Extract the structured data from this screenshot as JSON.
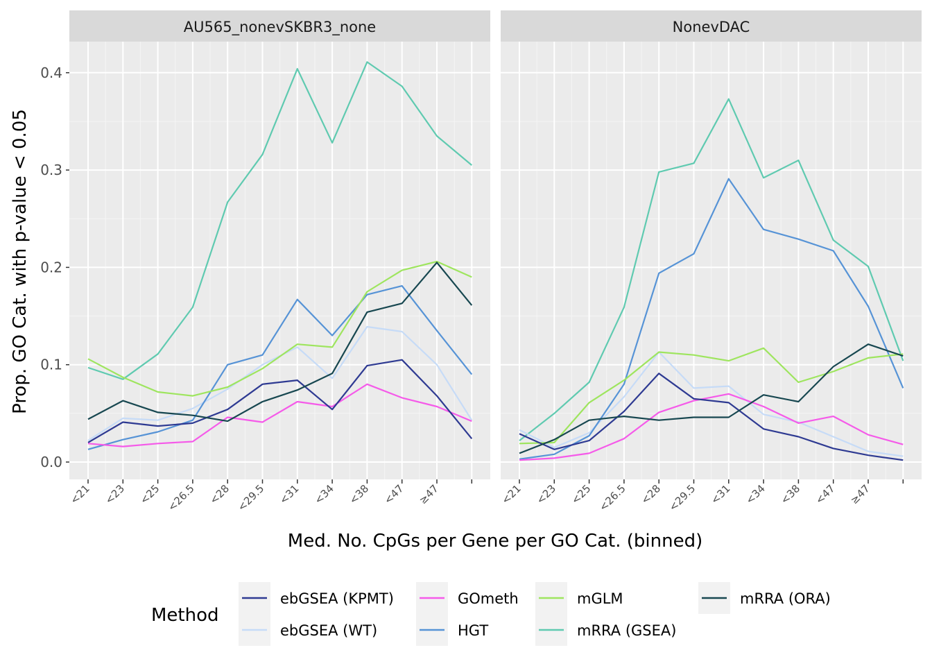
{
  "chart_data": {
    "type": "line",
    "ylabel": "Prop. GO Cat. with p-value < 0.05",
    "xlabel": "Med. No. CpGs per Gene per GO Cat. (binned)",
    "ylim": [
      -0.017,
      0.43
    ],
    "yticks": [
      0.0,
      0.1,
      0.2,
      0.3,
      0.4
    ],
    "ytick_labels": [
      "0.0",
      "0.1",
      "0.2",
      "0.3",
      "0.4"
    ],
    "categories": [
      "<21",
      "<23",
      "<25",
      "<26.5",
      "<28",
      "<29.5",
      "<31",
      "<34",
      "<38",
      "<47",
      "≥47",
      ""
    ],
    "grid": true,
    "legend": {
      "title": "Method",
      "placement": "bottom",
      "entries": [
        "ebGSEA (KPMT)",
        "ebGSEA (WT)",
        "GOmeth",
        "HGT",
        "mGLM",
        "mRRA (GSEA)",
        "mRRA (ORA)"
      ]
    },
    "colors": {
      "ebGSEA (KPMT)": "#2e3a92",
      "ebGSEA (WT)": "#c6dbf7",
      "GOmeth": "#f55ae9",
      "HGT": "#5693d6",
      "mGLM": "#9ee55e",
      "mRRA (GSEA)": "#5fcab0",
      "mRRA (ORA)": "#174750"
    },
    "panels": [
      {
        "title": "AU565_nonevSKBR3_none",
        "series": [
          {
            "name": "mRRA (GSEA)",
            "values": [
              0.097,
              0.085,
              0.111,
              0.159,
              0.267,
              0.316,
              0.404,
              0.328,
              0.411,
              0.386,
              0.335,
              0.305
            ]
          },
          {
            "name": "ebGSEA (WT)",
            "values": [
              0.022,
              0.045,
              0.043,
              0.055,
              0.075,
              0.1,
              0.118,
              0.086,
              0.139,
              0.134,
              0.1,
              0.043
            ]
          },
          {
            "name": "HGT",
            "values": [
              0.013,
              0.023,
              0.031,
              0.043,
              0.1,
              0.11,
              0.167,
              0.13,
              0.172,
              0.181,
              0.135,
              0.09
            ]
          },
          {
            "name": "mGLM",
            "values": [
              0.106,
              0.087,
              0.072,
              0.068,
              0.077,
              0.096,
              0.121,
              0.118,
              0.175,
              0.197,
              0.206,
              0.19
            ]
          },
          {
            "name": "GOmeth",
            "values": [
              0.019,
              0.016,
              0.019,
              0.021,
              0.046,
              0.041,
              0.062,
              0.057,
              0.08,
              0.066,
              0.057,
              0.042
            ]
          },
          {
            "name": "ebGSEA (KPMT)",
            "values": [
              0.02,
              0.041,
              0.037,
              0.04,
              0.054,
              0.08,
              0.084,
              0.054,
              0.099,
              0.105,
              0.068,
              0.024
            ]
          },
          {
            "name": "mRRA (ORA)",
            "values": [
              0.044,
              0.063,
              0.051,
              0.048,
              0.042,
              0.062,
              0.074,
              0.091,
              0.154,
              0.163,
              0.205,
              0.161
            ]
          }
        ]
      },
      {
        "title": "NonevDAC",
        "series": [
          {
            "name": "mRRA (GSEA)",
            "values": [
              0.022,
              0.05,
              0.082,
              0.159,
              0.298,
              0.307,
              0.373,
              0.292,
              0.31,
              0.228,
              0.201,
              0.104
            ]
          },
          {
            "name": "ebGSEA (WT)",
            "values": [
              0.033,
              0.015,
              0.03,
              0.067,
              0.113,
              0.076,
              0.078,
              0.049,
              0.041,
              0.026,
              0.011,
              0.006
            ]
          },
          {
            "name": "HGT",
            "values": [
              0.003,
              0.008,
              0.027,
              0.08,
              0.194,
              0.214,
              0.291,
              0.239,
              0.229,
              0.217,
              0.16,
              0.076
            ]
          },
          {
            "name": "mGLM",
            "values": [
              0.019,
              0.02,
              0.061,
              0.084,
              0.113,
              0.11,
              0.104,
              0.117,
              0.082,
              0.093,
              0.107,
              0.111
            ]
          },
          {
            "name": "GOmeth",
            "values": [
              0.002,
              0.004,
              0.009,
              0.024,
              0.051,
              0.063,
              0.07,
              0.057,
              0.04,
              0.047,
              0.028,
              0.018
            ]
          },
          {
            "name": "ebGSEA (KPMT)",
            "values": [
              0.029,
              0.013,
              0.022,
              0.052,
              0.091,
              0.065,
              0.061,
              0.034,
              0.026,
              0.014,
              0.007,
              0.002
            ]
          },
          {
            "name": "mRRA (ORA)",
            "values": [
              0.009,
              0.023,
              0.043,
              0.047,
              0.043,
              0.046,
              0.046,
              0.069,
              0.062,
              0.098,
              0.121,
              0.109
            ]
          }
        ]
      }
    ]
  }
}
